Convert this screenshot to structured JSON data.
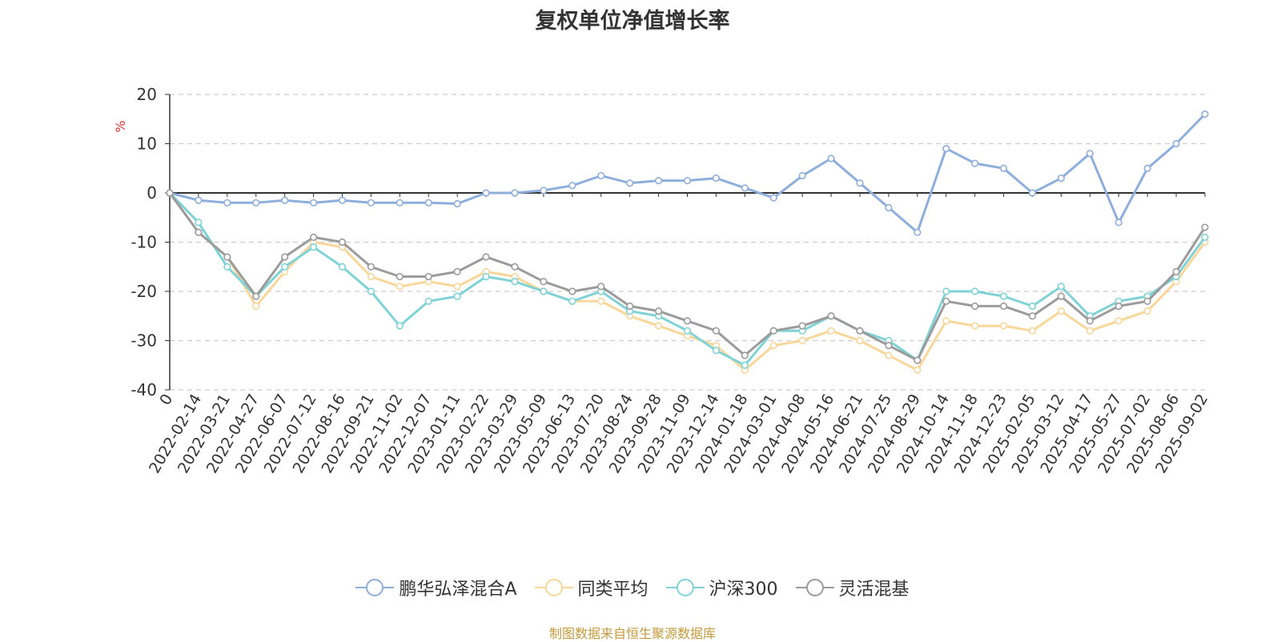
{
  "title": "复权单位净值增长率",
  "source_note": "制图数据来自恒生聚源数据库",
  "chart_data": {
    "type": "line",
    "title": "复权单位净值增长率",
    "ylabel": "%",
    "ylim": [
      -40,
      20
    ],
    "yticks": [
      20,
      10,
      0,
      -10,
      -20,
      -30,
      -40
    ],
    "grid": true,
    "legend_position": "bottom",
    "x_categories": [
      "0",
      "2022-02-14",
      "2022-03-21",
      "2022-04-27",
      "2022-06-07",
      "2022-07-12",
      "2022-08-16",
      "2022-09-21",
      "2022-11-02",
      "2022-12-07",
      "2023-01-11",
      "2023-02-22",
      "2023-03-29",
      "2023-05-09",
      "2023-06-13",
      "2023-07-20",
      "2023-08-24",
      "2023-09-28",
      "2023-11-09",
      "2023-12-14",
      "2024-01-18",
      "2024-03-01",
      "2024-04-08",
      "2024-05-16",
      "2024-06-21",
      "2024-07-25",
      "2024-08-29",
      "2024-10-14",
      "2024-11-18",
      "2024-12-23",
      "2025-02-05",
      "2025-03-12",
      "2025-04-17",
      "2025-05-27",
      "2025-07-02",
      "2025-08-06",
      "2025-09-02"
    ],
    "series": [
      {
        "name": "鹏华弘泽混合A",
        "color": "#8eaedc",
        "values": [
          0,
          -1.5,
          -2,
          -2,
          -1.5,
          -2,
          -1.5,
          -2,
          -2,
          -2,
          -2.2,
          0,
          0,
          0.5,
          1.5,
          3.5,
          2,
          2.5,
          2.5,
          3,
          1,
          -1,
          3.5,
          7,
          2,
          -3,
          -8,
          9,
          6,
          5,
          0,
          3,
          8,
          -6,
          5,
          10,
          16
        ]
      },
      {
        "name": "同类平均",
        "color": "#f9d79a",
        "values": [
          0,
          -8,
          -13,
          -23,
          -16,
          -10,
          -11,
          -17,
          -19,
          -18,
          -19,
          -16,
          -17,
          -20,
          -22,
          -22,
          -25,
          -27,
          -29,
          -31,
          -36,
          -31,
          -30,
          -28,
          -30,
          -33,
          -36,
          -26,
          -27,
          -27,
          -28,
          -24,
          -28,
          -26,
          -24,
          -18,
          -10
        ]
      },
      {
        "name": "沪深300",
        "color": "#7fd3d6",
        "values": [
          0,
          -6,
          -15,
          -21,
          -15,
          -11,
          -15,
          -20,
          -27,
          -22,
          -21,
          -17,
          -18,
          -20,
          -22,
          -20,
          -24,
          -25,
          -28,
          -32,
          -35,
          -28,
          -28,
          -25,
          -28,
          -30,
          -34,
          -20,
          -20,
          -21,
          -23,
          -19,
          -25,
          -22,
          -21,
          -17,
          -9
        ]
      },
      {
        "name": "灵活混基",
        "color": "#9b9b9b",
        "values": [
          0,
          -8,
          -13,
          -21,
          -13,
          -9,
          -10,
          -15,
          -17,
          -17,
          -16,
          -13,
          -15,
          -18,
          -20,
          -19,
          -23,
          -24,
          -26,
          -28,
          -33,
          -28,
          -27,
          -25,
          -28,
          -31,
          -34,
          -22,
          -23,
          -23,
          -25,
          -21,
          -26,
          -23,
          -22,
          -16,
          -7
        ]
      }
    ]
  }
}
